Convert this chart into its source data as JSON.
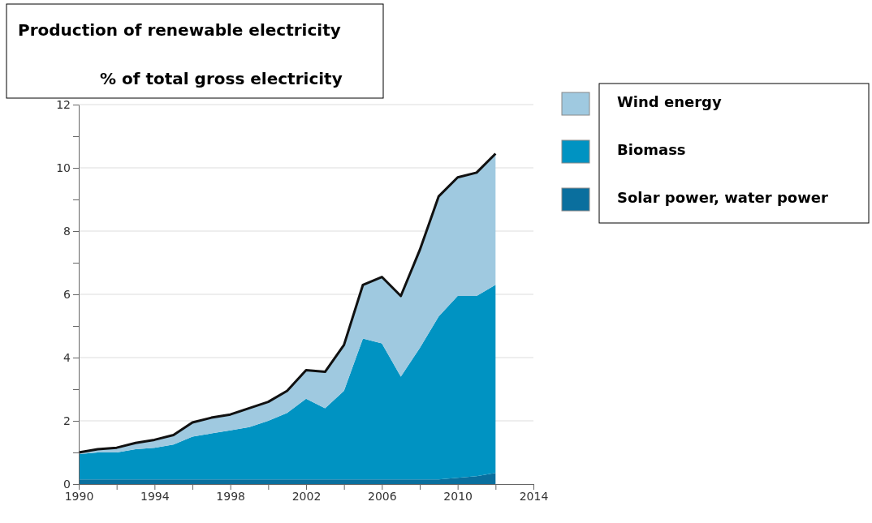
{
  "chart_data": {
    "type": "area",
    "stacked": true,
    "title": "Production of renewable electricity",
    "subtitle": "% of total gross electricity",
    "x": [
      1990,
      1991,
      1992,
      1993,
      1994,
      1995,
      1996,
      1997,
      1998,
      1999,
      2000,
      2001,
      2002,
      2003,
      2004,
      2005,
      2006,
      2007,
      2008,
      2009,
      2010,
      2011,
      2012
    ],
    "series": [
      {
        "name": "Solar power, water power",
        "color": "#0a6f9e",
        "values": [
          0.15,
          0.15,
          0.15,
          0.15,
          0.15,
          0.15,
          0.15,
          0.15,
          0.15,
          0.15,
          0.15,
          0.15,
          0.15,
          0.15,
          0.15,
          0.15,
          0.15,
          0.15,
          0.15,
          0.15,
          0.2,
          0.25,
          0.35
        ]
      },
      {
        "name": "Biomass",
        "color": "#0093c2",
        "values": [
          0.8,
          0.85,
          0.85,
          0.95,
          1.0,
          1.1,
          1.35,
          1.45,
          1.55,
          1.65,
          1.85,
          2.1,
          2.55,
          2.25,
          2.8,
          4.45,
          4.3,
          3.25,
          4.15,
          5.15,
          5.75,
          5.7,
          5.95
        ]
      },
      {
        "name": "Wind energy",
        "color": "#9fc9e0",
        "values": [
          0.05,
          0.1,
          0.15,
          0.2,
          0.25,
          0.3,
          0.45,
          0.5,
          0.5,
          0.6,
          0.6,
          0.7,
          0.9,
          1.15,
          1.45,
          1.7,
          2.1,
          2.55,
          3.1,
          3.8,
          3.75,
          3.9,
          4.15
        ]
      }
    ],
    "xlim": [
      1990,
      2014
    ],
    "xticks": [
      1990,
      {
        "value": 1992,
        "label": null
      },
      1994,
      {
        "value": 1996,
        "label": null
      },
      1998,
      {
        "value": 2000,
        "label": null
      },
      2002,
      {
        "value": 2004,
        "label": null
      },
      2006,
      {
        "value": 2008,
        "label": null
      },
      2010,
      {
        "value": 2012,
        "label": null
      },
      2014
    ],
    "ylim": [
      0,
      12
    ],
    "yticks": [
      0,
      {
        "value": 1,
        "label": null
      },
      2,
      {
        "value": 3,
        "label": null
      },
      4,
      {
        "value": 5,
        "label": null
      },
      6,
      {
        "value": 7,
        "label": null
      },
      8,
      {
        "value": 9,
        "label": null
      },
      10,
      {
        "value": 11,
        "label": null
      },
      12
    ],
    "grid": "y",
    "legend": "right"
  }
}
